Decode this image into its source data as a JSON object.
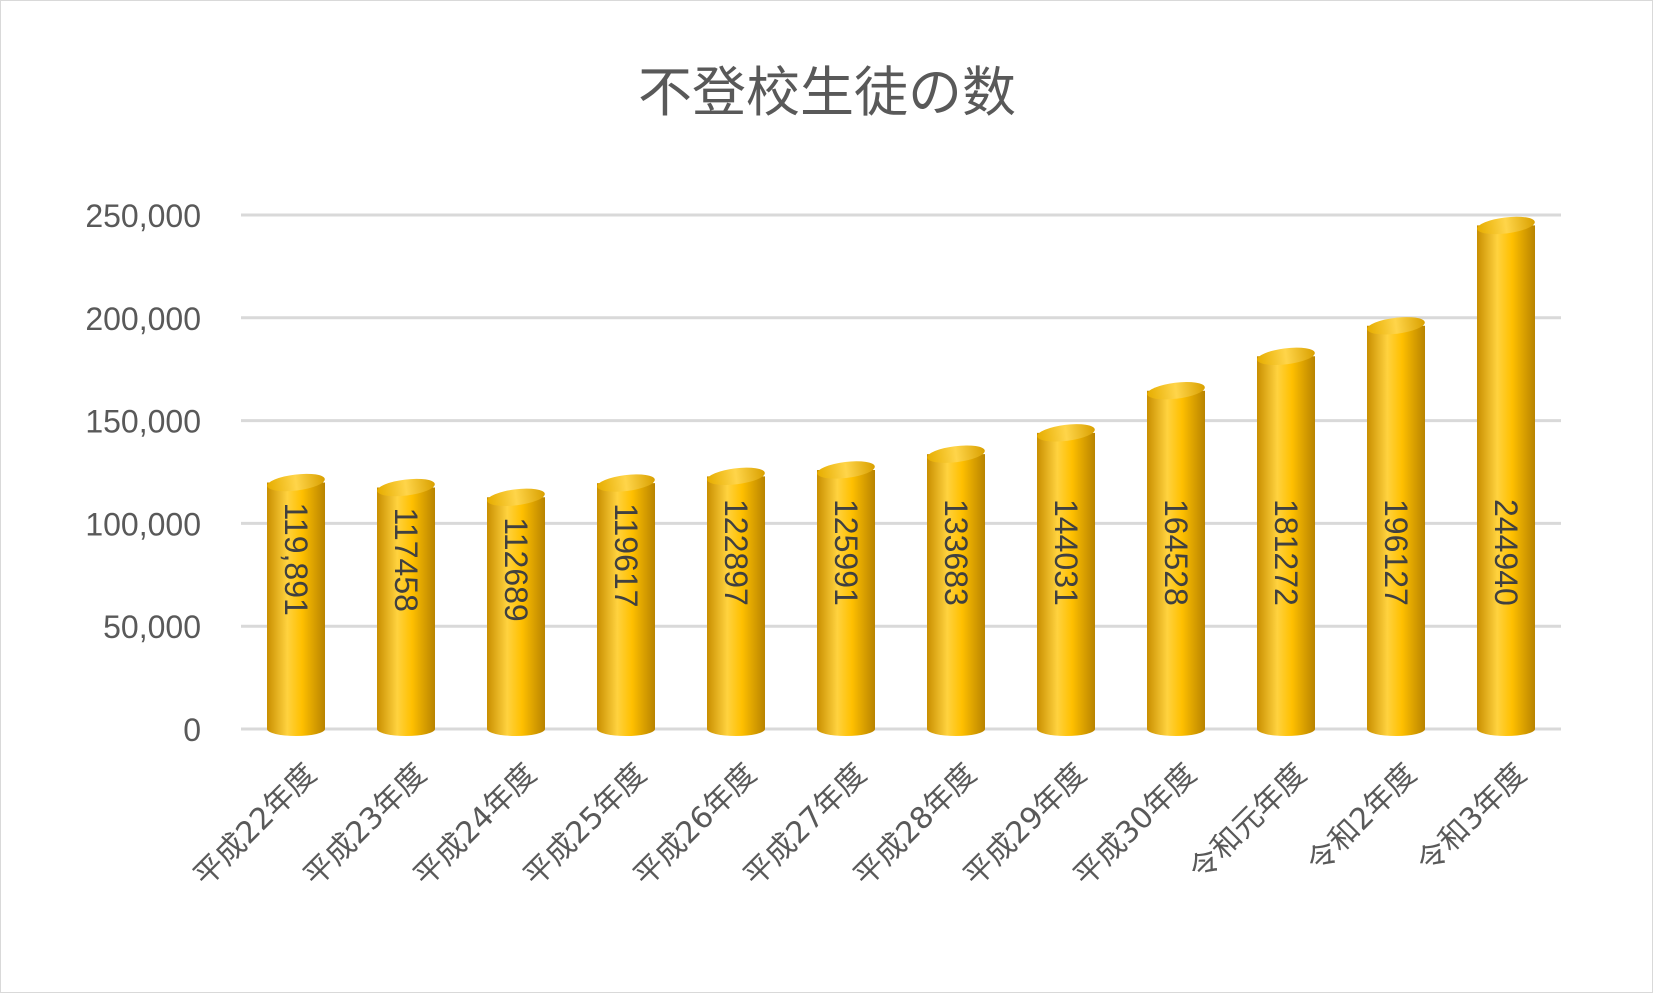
{
  "chart_data": {
    "type": "bar",
    "title": "不登校生徒の数",
    "categories": [
      "平成22年度",
      "平成23年度",
      "平成24年度",
      "平成25年度",
      "平成26年度",
      "平成27年度",
      "平成28年度",
      "平成29年度",
      "平成30年度",
      "令和元年度",
      "令和2年度",
      "令和3年度"
    ],
    "values": [
      119891,
      117458,
      112689,
      119617,
      122897,
      125991,
      133683,
      144031,
      164528,
      181272,
      196127,
      244940
    ],
    "value_labels": [
      "119,891",
      "117458",
      "112689",
      "119617",
      "122897",
      "125991",
      "133683",
      "144031",
      "164528",
      "181272",
      "196127",
      "244940"
    ],
    "yticks": [
      "0",
      "50,000",
      "100,000",
      "150,000",
      "200,000",
      "250,000"
    ],
    "ylim": [
      0,
      250000
    ],
    "grid": true,
    "bar_style": "3d-cylinder",
    "bar_color": "#FFC000",
    "gridline_color": "#D9D9D9"
  }
}
